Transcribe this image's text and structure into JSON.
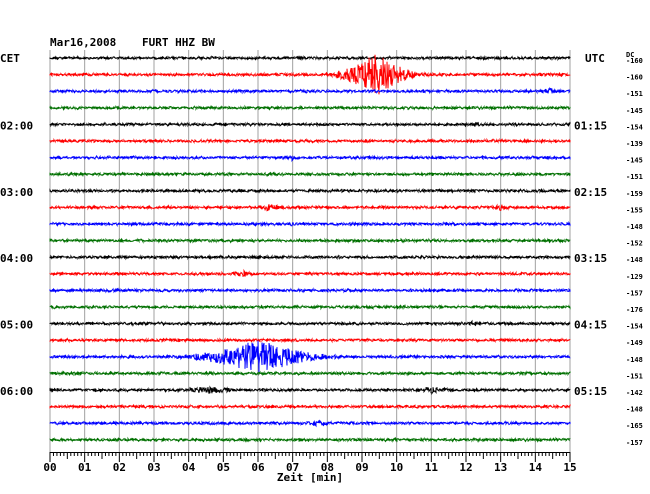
{
  "header": {
    "date": "Mar16,2008",
    "station": "FURT HHZ BW",
    "left_zone": "CET",
    "right_zone": "UTC",
    "dc_label": "DC"
  },
  "colors": {
    "cycle": [
      "#000000",
      "#ff0000",
      "#0000ff",
      "#007000"
    ],
    "grid": "#a0a0a0",
    "background": "#ffffff"
  },
  "chart_data": {
    "type": "line",
    "title": "Mar16,2008   FURT HHZ BW",
    "xlabel": "Zeit [min]",
    "ylabel_left": "CET",
    "ylabel_right": "UTC",
    "x_range": [
      0,
      15
    ],
    "x_ticks": [
      "00",
      "01",
      "02",
      "03",
      "04",
      "05",
      "06",
      "07",
      "08",
      "09",
      "10",
      "11",
      "12",
      "13",
      "14",
      "15"
    ],
    "trace_count": 24,
    "trace_minutes": 15,
    "grid": true,
    "left_time_labels": [
      {
        "trace": 4,
        "label": "02:00"
      },
      {
        "trace": 8,
        "label": "03:00"
      },
      {
        "trace": 12,
        "label": "04:00"
      },
      {
        "trace": 16,
        "label": "05:00"
      },
      {
        "trace": 20,
        "label": "06:00"
      }
    ],
    "right_time_labels": [
      {
        "trace": 4,
        "label": "01:15"
      },
      {
        "trace": 8,
        "label": "02:15"
      },
      {
        "trace": 12,
        "label": "03:15"
      },
      {
        "trace": 16,
        "label": "04:15"
      },
      {
        "trace": 20,
        "label": "05:15"
      }
    ],
    "dc_offsets": [
      -160,
      -160,
      -151,
      -145,
      -154,
      -139,
      -145,
      -151,
      -159,
      -155,
      -148,
      -152,
      -148,
      -129,
      -157,
      -176,
      -154,
      -149,
      -148,
      -151,
      -142,
      -148,
      -165,
      -157
    ],
    "events": [
      {
        "trace": 1,
        "minute": 9.4,
        "amplitude": 22,
        "duration_min": 3.2,
        "label": ""
      },
      {
        "trace": 2,
        "minute": 14.4,
        "amplitude": 2,
        "duration_min": 1.0
      },
      {
        "trace": 4,
        "minute": 12.3,
        "amplitude": 2,
        "duration_min": 0.6
      },
      {
        "trace": 6,
        "minute": 7.0,
        "amplitude": 2.5,
        "duration_min": 0.5
      },
      {
        "trace": 6,
        "minute": 14.6,
        "amplitude": 6,
        "duration_min": 0.05
      },
      {
        "trace": 9,
        "minute": 6.3,
        "amplitude": 2.5,
        "duration_min": 1.4
      },
      {
        "trace": 9,
        "minute": 13.0,
        "amplitude": 2,
        "duration_min": 1.0
      },
      {
        "trace": 10,
        "minute": 7.0,
        "amplitude": 2,
        "duration_min": 0.3
      },
      {
        "trace": 13,
        "minute": 5.6,
        "amplitude": 3,
        "duration_min": 0.8
      },
      {
        "trace": 16,
        "minute": 12.2,
        "amplitude": 1.5,
        "duration_min": 0.8
      },
      {
        "trace": 18,
        "minute": 6.0,
        "amplitude": 16,
        "duration_min": 5.5
      },
      {
        "trace": 20,
        "minute": 4.6,
        "amplitude": 3,
        "duration_min": 2.0
      },
      {
        "trace": 20,
        "minute": 11.0,
        "amplitude": 2.5,
        "duration_min": 1.6
      },
      {
        "trace": 22,
        "minute": 7.7,
        "amplitude": 2,
        "duration_min": 1.4
      }
    ]
  }
}
